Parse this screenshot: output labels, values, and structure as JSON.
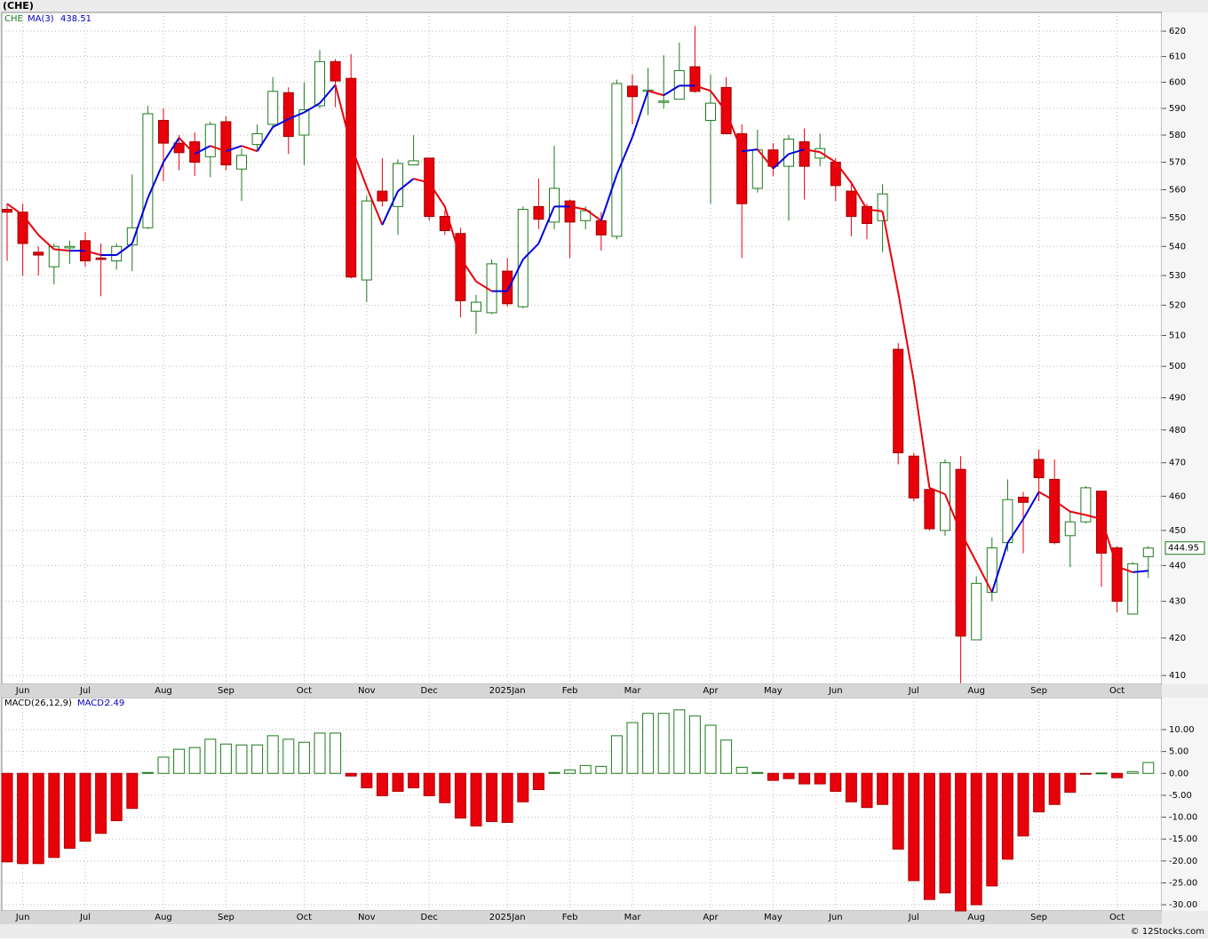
{
  "chart_data": [
    {
      "type": "candlestick",
      "title": "(CHE)",
      "symbol": "CHE",
      "ma_label": "MA(3)",
      "log": true,
      "grid": true,
      "up_color": "#1e7a1e",
      "down_color": "#e8000b",
      "ma_up_color": "#0000e0",
      "ma_down_color": "#e8000b",
      "ylim": [
        407.7,
        627.5
      ],
      "yticks": [
        410,
        420,
        430,
        440,
        450,
        460,
        470,
        480,
        490,
        500,
        510,
        520,
        530,
        540,
        550,
        560,
        570,
        580,
        590,
        600,
        610,
        620
      ],
      "xticks": [
        {
          "value": 1,
          "label": "Jun"
        },
        {
          "value": 5,
          "label": "Jul"
        },
        {
          "value": 10,
          "label": "Aug"
        },
        {
          "value": 14,
          "label": "Sep"
        },
        {
          "value": 19,
          "label": "Oct"
        },
        {
          "value": 23,
          "label": "Nov"
        },
        {
          "value": 27,
          "label": "Dec"
        },
        {
          "value": 32,
          "label": "2025Jan"
        },
        {
          "value": 36,
          "label": "Feb"
        },
        {
          "value": 40,
          "label": "Mar"
        },
        {
          "value": 45,
          "label": "Apr"
        },
        {
          "value": 49,
          "label": "May"
        },
        {
          "value": 53,
          "label": "Jun"
        },
        {
          "value": 58,
          "label": "Jul"
        },
        {
          "value": 62,
          "label": "Aug"
        },
        {
          "value": 66,
          "label": "Sep"
        },
        {
          "value": 71,
          "label": "Oct"
        }
      ],
      "open": [
        553,
        552,
        538,
        533,
        539.5,
        542,
        536,
        535,
        540.5,
        546.5,
        585.5,
        577,
        577.5,
        572,
        585,
        567.5,
        576.5,
        584,
        596,
        580,
        591,
        608,
        601.5,
        528.5,
        559.5,
        554,
        569,
        571.5,
        550.5,
        544.5,
        518,
        517.5,
        531.5,
        519.5,
        554,
        548.5,
        556,
        549,
        549,
        543.5,
        598.5,
        596.5,
        592.5,
        593.5,
        606,
        585.5,
        598,
        580.5,
        560.5,
        574.5,
        568.5,
        577.5,
        571.5,
        570,
        559.5,
        554,
        549,
        505.5,
        472,
        462,
        450,
        468,
        419.5,
        432.5,
        446.5,
        459.7,
        471,
        465,
        448.5,
        452.5,
        461.5,
        445,
        426.5,
        442.5
      ],
      "high": [
        555,
        555,
        540,
        541,
        542,
        545,
        541,
        541,
        565.5,
        591,
        590,
        580,
        581,
        585,
        587,
        575,
        584,
        602,
        598,
        600,
        612.5,
        609,
        611,
        558,
        571.5,
        571,
        580,
        571.5,
        552.5,
        546.5,
        523.5,
        535.5,
        536,
        554,
        564,
        576,
        556.5,
        554,
        552,
        601,
        603,
        605.5,
        610.5,
        615.5,
        622,
        603,
        602,
        584,
        582,
        577,
        580,
        582.5,
        580.5,
        571.5,
        563,
        555,
        562,
        507.5,
        473,
        463.5,
        471,
        472,
        437,
        448,
        465,
        461.3,
        474,
        471,
        455.5,
        463,
        461.5,
        445.5,
        441,
        445.5
      ],
      "low": [
        535,
        530,
        530,
        527,
        534,
        533,
        523,
        532,
        531.5,
        546,
        563,
        567,
        565,
        564.5,
        567,
        556,
        574.5,
        582.5,
        573,
        569,
        590,
        590.5,
        529,
        521,
        554,
        544,
        569,
        549,
        544,
        516,
        510.5,
        517,
        519.5,
        519,
        546,
        546,
        536,
        546,
        538.5,
        542.5,
        584,
        587.5,
        590,
        593.5,
        596,
        555,
        580.5,
        536,
        559,
        565,
        549,
        556.5,
        568.5,
        556,
        543.5,
        542.5,
        538,
        469.5,
        458.5,
        450,
        448.5,
        408,
        419.5,
        430,
        444,
        443.5,
        458.5,
        446,
        439.5,
        452,
        434,
        427,
        426.5,
        436.5
      ],
      "close": [
        552,
        541,
        537,
        540,
        540,
        535,
        535.5,
        540,
        546.5,
        588,
        577,
        573.5,
        570,
        584,
        569,
        572.5,
        580.5,
        596.5,
        579.5,
        589.5,
        608,
        600.5,
        529.5,
        556,
        556,
        569.5,
        570.5,
        550.5,
        545.5,
        521.5,
        521,
        534,
        520.5,
        553,
        549.5,
        560.5,
        548.5,
        552.5,
        544,
        599.5,
        594.5,
        597,
        592.8,
        604.5,
        596.5,
        592,
        580.5,
        555,
        574.5,
        568.5,
        578.5,
        568.5,
        575,
        561.5,
        550.5,
        548,
        558.5,
        473,
        459.5,
        450.5,
        470,
        420.5,
        435,
        445,
        459,
        458.2,
        465.5,
        446.5,
        452.5,
        462.5,
        443.5,
        430,
        440.5,
        444.95
      ],
      "ma": [
        555,
        551,
        544,
        539,
        538.5,
        538.5,
        537,
        537,
        541,
        557,
        570,
        579,
        573,
        576,
        574,
        576,
        574,
        583,
        586,
        588.5,
        592,
        599,
        576,
        561,
        547.5,
        559.5,
        564,
        562.5,
        554,
        536,
        528,
        524.7,
        524.7,
        535.5,
        541,
        554,
        554,
        553,
        549,
        565.5,
        579.3,
        596.7,
        595,
        598.7,
        598.7,
        596.7,
        588.7,
        574,
        574.7,
        567.7,
        573,
        574.7,
        573.7,
        570,
        562.5,
        553,
        552.3,
        524.3,
        495.3,
        462.5,
        460.6,
        449.5,
        441,
        432.5,
        446.4,
        453.3,
        461.3,
        458.7,
        455.5,
        454.5,
        453.3,
        439.7,
        438.1,
        438.51
      ]
    },
    {
      "type": "bar",
      "indicator_label": "MACD(26,12,9)",
      "current_label": "MACD:",
      "grid": true,
      "up_color": "#1e7a1e",
      "down_color": "#e8000b",
      "ylim": [
        -31.4,
        17.3
      ],
      "yticks": [
        {
          "value": 10,
          "label": "10.00"
        },
        {
          "value": 5,
          "label": "5.00"
        },
        {
          "value": 0,
          "label": "0.00"
        },
        {
          "value": -5,
          "label": "-5.00"
        },
        {
          "value": -10,
          "label": "-10.00"
        },
        {
          "value": -15,
          "label": "-15.00"
        },
        {
          "value": -20,
          "label": "-20.00"
        },
        {
          "value": -25,
          "label": "-25.00"
        },
        {
          "value": -30,
          "label": "-30.00"
        }
      ],
      "values": [
        -20.2,
        -20.6,
        -20.6,
        -19.2,
        -17.1,
        -15.5,
        -13.7,
        -10.8,
        -8.0,
        0.2,
        3.7,
        5.5,
        5.9,
        7.8,
        6.7,
        6.5,
        6.5,
        8.6,
        7.8,
        7.1,
        9.2,
        9.2,
        -0.6,
        -3.3,
        -5.1,
        -4.1,
        -3.3,
        -5.1,
        -6.7,
        -10.2,
        -12.0,
        -11.0,
        -11.2,
        -6.5,
        -3.7,
        0.2,
        0.8,
        1.8,
        1.6,
        8.6,
        11.6,
        13.7,
        13.7,
        14.5,
        13.1,
        11.0,
        7.6,
        1.4,
        0.2,
        -1.6,
        -1.2,
        -2.4,
        -2.4,
        -4.1,
        -6.5,
        -7.8,
        -7.1,
        -17.3,
        -24.5,
        -28.8,
        -27.3,
        -31.4,
        -30.0,
        -25.7,
        -19.6,
        -14.3,
        -8.8,
        -7.1,
        -4.3,
        -0.2,
        0.1,
        -1.0,
        0.4,
        2.49
      ]
    }
  ],
  "footer": "© 12Stocks.com"
}
